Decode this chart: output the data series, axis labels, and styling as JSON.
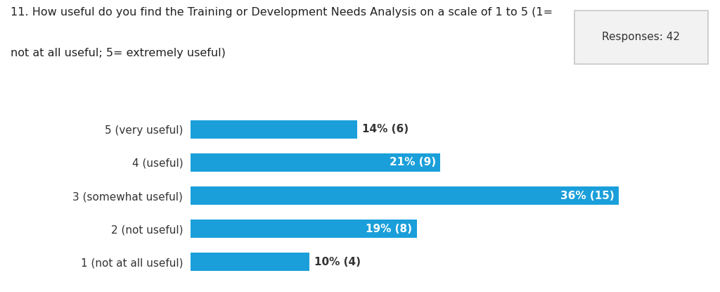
{
  "title_line1": "11. How useful do you find the Training or Development Needs Analysis on a scale of 1 to 5 (1=",
  "title_line2": "not at all useful; 5= extremely useful)",
  "responses_label": "Responses: 42",
  "categories": [
    "1 (not at all useful)",
    "2 (not useful)",
    "3 (somewhat useful)",
    "4 (useful)",
    "5 (very useful)"
  ],
  "values": [
    14,
    21,
    36,
    19,
    10
  ],
  "counts": [
    6,
    9,
    15,
    8,
    4
  ],
  "bar_color": "#1a9fda",
  "bar_labels_inside": [
    false,
    true,
    true,
    true,
    false
  ],
  "label_color_inside": "#ffffff",
  "label_color_outside": "#333333",
  "background_color": "#ffffff",
  "title_fontsize": 11.5,
  "label_fontsize": 11,
  "tick_fontsize": 11,
  "responses_fontsize": 11,
  "xlim_max": 43
}
